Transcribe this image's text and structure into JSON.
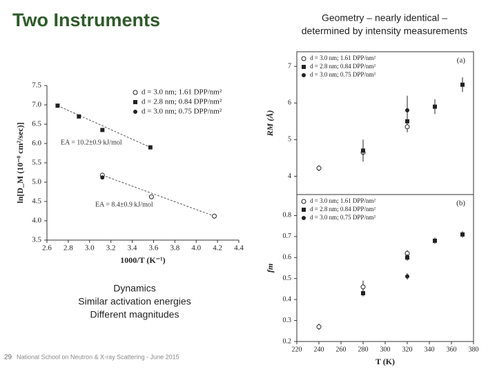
{
  "title": "Two Instruments",
  "right_heading": [
    "Geometry – nearly identical –",
    "determined by intensity measurements"
  ],
  "caption": [
    "Dynamics",
    "Similar activation energies",
    "Different magnitudes"
  ],
  "page_number": "29",
  "footer": "National School on Neutron & X-ray Scattering -   June 2015",
  "chart_data": [
    {
      "type": "scatter",
      "xlabel": "1000/T (K⁻¹)",
      "ylabel": "ln[D_M (10⁻⁸ cm²/sec)]",
      "xlim": [
        2.6,
        4.4
      ],
      "xticks": [
        2.6,
        2.8,
        {
          "value": 3,
          "label": "3.0"
        },
        3.2,
        3.4,
        3.6,
        3.8,
        {
          "value": 4,
          "label": "4.0"
        },
        4.2,
        4.4
      ],
      "ylim": [
        3.5,
        7.5
      ],
      "yticks": [
        3.5,
        {
          "value": 4,
          "label": "4.0"
        },
        4.5,
        {
          "value": 5,
          "label": "5.0"
        },
        5.5,
        {
          "value": 6,
          "label": "6.0"
        },
        6.5,
        {
          "value": 7,
          "label": "7.0"
        },
        7.5
      ],
      "legend": "upper right",
      "annotations": [
        "EA = 10.2±0.9 kJ/mol",
        "EA = 8.4±0.9 kJ/mol"
      ],
      "series": [
        {
          "name": "d = 3.0 nm; 1.61 DPP/nm²",
          "marker": "open-circle",
          "color": "#222222",
          "fit": true,
          "x": [
            3.12,
            3.58,
            4.17
          ],
          "values": [
            5.18,
            4.62,
            4.12
          ]
        },
        {
          "name": "d = 2.8 nm; 0.84 DPP/nm²",
          "marker": "square",
          "color": "#222222",
          "fit": true,
          "x": [
            2.7,
            2.9,
            3.12,
            3.57
          ],
          "values": [
            6.98,
            6.7,
            6.35,
            5.9
          ]
        },
        {
          "name": "d = 3.0 nm; 0.75 DPP/nm²",
          "marker": "circle",
          "color": "#222222",
          "x": [
            3.12
          ],
          "values": [
            5.12
          ]
        }
      ]
    },
    {
      "type": "scatter",
      "panel_label": "(a)",
      "ylabel": "RM (Å)",
      "xlim": [
        220,
        380
      ],
      "ylim": [
        3.5,
        7.4
      ],
      "yticks": [
        4,
        5,
        6,
        7
      ],
      "legend": "upper left",
      "series": [
        {
          "name": "d = 3.0 nm; 1.61 DPP/nm²",
          "marker": "open-circle",
          "color": "#222222",
          "x": [
            240,
            280,
            320
          ],
          "values": [
            4.22,
            4.65,
            5.35
          ],
          "errors": [
            0.08,
            0.25,
            0.15
          ]
        },
        {
          "name": "d = 2.8 nm; 0.84 DPP/nm²",
          "marker": "square",
          "color": "#222222",
          "x": [
            280,
            320,
            345,
            370
          ],
          "values": [
            4.7,
            5.5,
            5.9,
            6.5
          ],
          "errors": [
            0.3,
            0.1,
            0.2,
            0.2
          ]
        },
        {
          "name": "d = 3.0 nm; 0.75 DPP/nm²",
          "marker": "circle",
          "color": "#222222",
          "x": [
            320
          ],
          "values": [
            5.8
          ],
          "errors": [
            0.4
          ]
        }
      ]
    },
    {
      "type": "scatter",
      "panel_label": "(b)",
      "xlabel": "T (K)",
      "ylabel": "fm",
      "xlim": [
        220,
        380
      ],
      "xticks": [
        220,
        240,
        260,
        280,
        300,
        320,
        340,
        360,
        380
      ],
      "ylim": [
        0.2,
        0.9
      ],
      "yticks": [
        0.2,
        0.3,
        0.4,
        0.5,
        0.6,
        0.7,
        0.8
      ],
      "legend": "upper left",
      "series": [
        {
          "name": "d = 3.0 nm; 1.61 DPP/nm²",
          "marker": "open-circle",
          "color": "#222222",
          "x": [
            240,
            280,
            320
          ],
          "values": [
            0.27,
            0.46,
            0.62
          ],
          "errors": [
            0.015,
            0.03,
            0.015
          ]
        },
        {
          "name": "d = 2.8 nm; 0.84 DPP/nm²",
          "marker": "square",
          "color": "#222222",
          "x": [
            280,
            320,
            345,
            370
          ],
          "values": [
            0.43,
            0.6,
            0.68,
            0.71
          ],
          "errors": [
            0.015,
            0.015,
            0.015,
            0.015
          ]
        },
        {
          "name": "d = 3.0 nm; 0.75 DPP/nm²",
          "marker": "circle",
          "color": "#222222",
          "x": [
            320
          ],
          "values": [
            0.51
          ],
          "errors": [
            0.015
          ]
        }
      ]
    }
  ]
}
